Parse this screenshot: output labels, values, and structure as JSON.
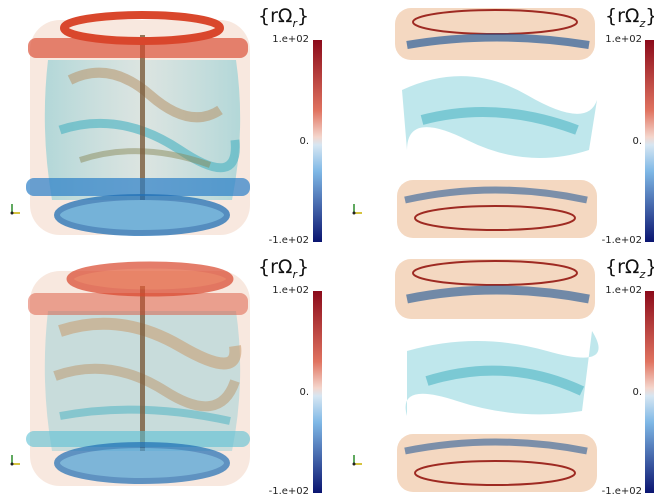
{
  "panels": [
    {
      "id": "top-left",
      "title_prefix": "{r",
      "title_symbol": "Ω",
      "title_sub": "r",
      "title_suffix": "}",
      "cb_max": "1.e+02",
      "cb_mid": "0.",
      "cb_min": "-1.e+02"
    },
    {
      "id": "top-right",
      "title_prefix": "{r",
      "title_symbol": "Ω",
      "title_sub": "z",
      "title_suffix": "}",
      "cb_max": "1.e+02",
      "cb_mid": "0.",
      "cb_min": "-1.e+02"
    },
    {
      "id": "bottom-left",
      "title_prefix": "{r",
      "title_symbol": "Ω",
      "title_sub": "r",
      "title_suffix": "}",
      "cb_max": "1.e+02",
      "cb_mid": "0.",
      "cb_min": "-1.e+02"
    },
    {
      "id": "bottom-right",
      "title_prefix": "{r",
      "title_symbol": "Ω",
      "title_sub": "z",
      "title_suffix": "}",
      "cb_max": "1.e+02",
      "cb_mid": "0.",
      "cb_min": "-1.e+02"
    }
  ],
  "colormap": {
    "high": "#8b0a1a",
    "mid_high": "#f1a98a",
    "mid": "#f2f2f2",
    "mid_low": "#8fc3ea",
    "low": "#0a1470"
  },
  "colors": {
    "red_ring": "#d9472c",
    "blue_ring": "#2b7fc7",
    "cyan": "#5ec3d0",
    "peach": "#e9b493",
    "olive": "#8a8a5a"
  }
}
